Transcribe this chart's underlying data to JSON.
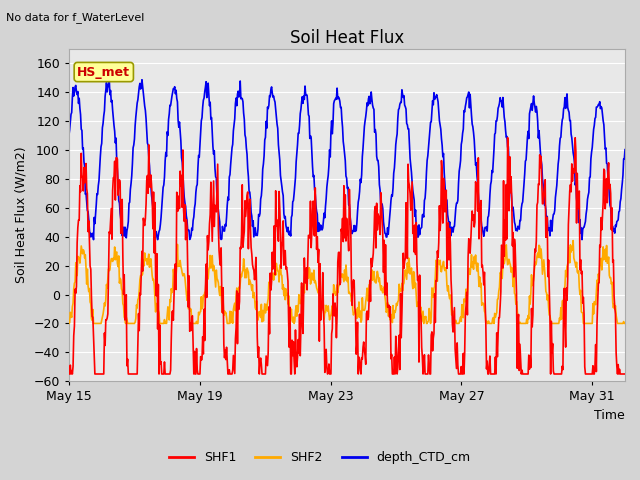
{
  "title": "Soil Heat Flux",
  "title_note": "No data for f_WaterLevel",
  "ylabel": "Soil Heat Flux (W/m2)",
  "xlabel": "Time",
  "ylim": [
    -60,
    170
  ],
  "yticks": [
    -60,
    -40,
    -20,
    0,
    20,
    40,
    60,
    80,
    100,
    120,
    140,
    160
  ],
  "xtick_labels": [
    "May 15",
    "May 19",
    "May 23",
    "May 27",
    "May 31"
  ],
  "xtick_positions": [
    0,
    4,
    8,
    12,
    16
  ],
  "legend_labels": [
    "SHF1",
    "SHF2",
    "depth_CTD_cm"
  ],
  "legend_colors": [
    "#ff0000",
    "#ffaa00",
    "#0000ee"
  ],
  "annotation_label": "HS_met",
  "annotation_color": "#cc0000",
  "annotation_bg": "#ffff99",
  "annotation_edge": "#999900",
  "fig_bg_color": "#d4d4d4",
  "plot_bg_color": "#e8e8e8",
  "grid_color": "#ffffff",
  "title_fontsize": 12,
  "tick_fontsize": 9,
  "label_fontsize": 9,
  "legend_fontsize": 9,
  "line_width": 1.2,
  "num_days": 17,
  "points_per_day": 48,
  "random_seed": 42
}
